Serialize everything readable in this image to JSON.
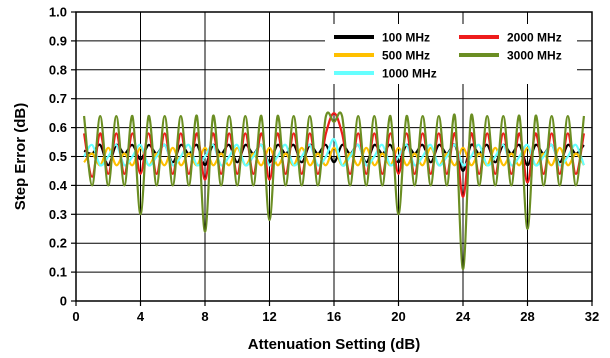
{
  "chart_data": {
    "type": "line",
    "xlabel": "Attenuation Setting (dB)",
    "ylabel": "Step Error (dB)",
    "xlim": [
      0,
      32
    ],
    "ylim": [
      0,
      1.0
    ],
    "x_ticks": [
      "0",
      "4",
      "8",
      "12",
      "16",
      "20",
      "24",
      "28",
      "32"
    ],
    "y_ticks": [
      "0",
      "0.1",
      "0.2",
      "0.3",
      "0.4",
      "0.5",
      "0.6",
      "0.7",
      "0.8",
      "0.9",
      "1.0"
    ],
    "grid": true,
    "legend_position": "top-right",
    "x": [
      0.5,
      1,
      1.5,
      2,
      2.5,
      3,
      3.5,
      4,
      4.5,
      5,
      5.5,
      6,
      6.5,
      7,
      7.5,
      8,
      8.5,
      9,
      9.5,
      10,
      10.5,
      11,
      11.5,
      12,
      12.5,
      13,
      13.5,
      14,
      14.5,
      15,
      15.5,
      16,
      16.5,
      17,
      17.5,
      18,
      18.5,
      19,
      19.5,
      20,
      20.5,
      21,
      21.5,
      22,
      22.5,
      23,
      23.5,
      24,
      24.5,
      25,
      25.5,
      26,
      26.5,
      27,
      27.5,
      28,
      28.5,
      29,
      29.5,
      30,
      30.5,
      31,
      31.5
    ],
    "series": [
      {
        "name": "100 MHz",
        "color": "#000000",
        "values": [
          0.52,
          0.51,
          0.54,
          0.47,
          0.54,
          0.51,
          0.54,
          0.49,
          0.54,
          0.51,
          0.54,
          0.48,
          0.54,
          0.51,
          0.54,
          0.47,
          0.54,
          0.51,
          0.54,
          0.48,
          0.54,
          0.51,
          0.54,
          0.48,
          0.54,
          0.51,
          0.54,
          0.48,
          0.54,
          0.51,
          0.54,
          0.48,
          0.54,
          0.51,
          0.54,
          0.48,
          0.54,
          0.51,
          0.54,
          0.48,
          0.54,
          0.51,
          0.54,
          0.48,
          0.54,
          0.51,
          0.54,
          0.45,
          0.54,
          0.51,
          0.54,
          0.48,
          0.54,
          0.51,
          0.54,
          0.47,
          0.54,
          0.51,
          0.54,
          0.48,
          0.54,
          0.51,
          0.54
        ]
      },
      {
        "name": "500 MHz",
        "color": "#ffc000",
        "values": [
          0.48,
          0.51,
          0.47,
          0.53,
          0.47,
          0.51,
          0.47,
          0.53,
          0.47,
          0.51,
          0.47,
          0.53,
          0.47,
          0.51,
          0.47,
          0.53,
          0.47,
          0.51,
          0.47,
          0.53,
          0.47,
          0.51,
          0.47,
          0.53,
          0.47,
          0.51,
          0.47,
          0.53,
          0.47,
          0.51,
          0.47,
          0.53,
          0.47,
          0.51,
          0.47,
          0.53,
          0.47,
          0.51,
          0.47,
          0.53,
          0.47,
          0.51,
          0.47,
          0.53,
          0.47,
          0.51,
          0.47,
          0.53,
          0.47,
          0.51,
          0.47,
          0.53,
          0.47,
          0.51,
          0.47,
          0.53,
          0.47,
          0.51,
          0.47,
          0.53,
          0.47,
          0.51,
          0.47
        ]
      },
      {
        "name": "1000 MHz",
        "color": "#66ffff",
        "values": [
          0.5,
          0.54,
          0.47,
          0.5,
          0.54,
          0.47,
          0.5,
          0.54,
          0.47,
          0.5,
          0.54,
          0.47,
          0.5,
          0.54,
          0.47,
          0.5,
          0.54,
          0.47,
          0.5,
          0.54,
          0.47,
          0.5,
          0.54,
          0.47,
          0.5,
          0.54,
          0.47,
          0.5,
          0.54,
          0.47,
          0.5,
          0.56,
          0.47,
          0.5,
          0.54,
          0.47,
          0.5,
          0.54,
          0.47,
          0.5,
          0.54,
          0.47,
          0.5,
          0.54,
          0.47,
          0.5,
          0.54,
          0.47,
          0.5,
          0.54,
          0.47,
          0.5,
          0.54,
          0.47,
          0.5,
          0.54,
          0.47,
          0.5,
          0.54,
          0.47,
          0.5,
          0.54,
          0.47
        ]
      },
      {
        "name": "2000 MHz",
        "color": "#ee1c1c",
        "values": [
          0.58,
          0.43,
          0.58,
          0.44,
          0.58,
          0.44,
          0.58,
          0.44,
          0.58,
          0.44,
          0.58,
          0.44,
          0.58,
          0.44,
          0.58,
          0.42,
          0.58,
          0.44,
          0.58,
          0.44,
          0.58,
          0.44,
          0.58,
          0.42,
          0.58,
          0.44,
          0.58,
          0.44,
          0.58,
          0.44,
          0.58,
          0.65,
          0.58,
          0.44,
          0.58,
          0.44,
          0.58,
          0.44,
          0.58,
          0.44,
          0.58,
          0.44,
          0.58,
          0.44,
          0.58,
          0.44,
          0.58,
          0.36,
          0.58,
          0.44,
          0.58,
          0.44,
          0.58,
          0.44,
          0.58,
          0.41,
          0.58,
          0.44,
          0.58,
          0.44,
          0.58,
          0.44,
          0.58
        ]
      },
      {
        "name": "3000 MHz",
        "color": "#6b8e23",
        "values": [
          0.64,
          0.4,
          0.64,
          0.4,
          0.64,
          0.4,
          0.64,
          0.3,
          0.64,
          0.4,
          0.64,
          0.4,
          0.64,
          0.4,
          0.64,
          0.24,
          0.64,
          0.4,
          0.64,
          0.4,
          0.64,
          0.4,
          0.64,
          0.28,
          0.64,
          0.4,
          0.64,
          0.4,
          0.64,
          0.4,
          0.64,
          0.62,
          0.64,
          0.4,
          0.64,
          0.4,
          0.64,
          0.4,
          0.64,
          0.3,
          0.64,
          0.4,
          0.64,
          0.4,
          0.64,
          0.4,
          0.64,
          0.11,
          0.64,
          0.4,
          0.64,
          0.4,
          0.64,
          0.4,
          0.64,
          0.25,
          0.64,
          0.4,
          0.64,
          0.4,
          0.64,
          0.4,
          0.64
        ]
      }
    ]
  }
}
